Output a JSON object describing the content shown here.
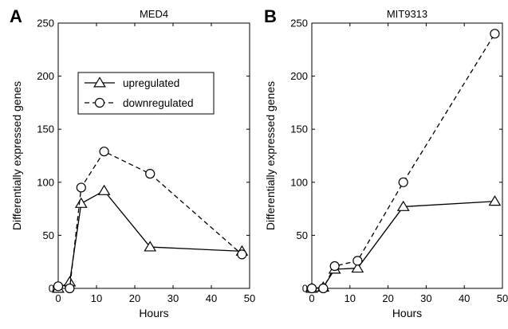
{
  "chart_data": [
    {
      "type": "line",
      "panel_label": "A",
      "title": "MED4",
      "xlabel": "Hours",
      "ylabel": "Differentially expressed genes",
      "xlim": [
        0,
        50
      ],
      "ylim": [
        0,
        250
      ],
      "xticks": [
        0,
        10,
        20,
        30,
        40,
        50
      ],
      "yticks": [
        0,
        50,
        100,
        150,
        200,
        250
      ],
      "grid": false,
      "legend": "upper-center",
      "series": [
        {
          "name": "upregulated",
          "marker": "triangle",
          "linestyle": "solid",
          "color": "#000000",
          "x": [
            0,
            3,
            6,
            12,
            24,
            48
          ],
          "y": [
            0,
            6,
            80,
            92,
            39,
            35
          ]
        },
        {
          "name": "downregulated",
          "marker": "circle",
          "linestyle": "dashed",
          "color": "#000000",
          "x": [
            0,
            3,
            6,
            12,
            24,
            48
          ],
          "y": [
            2,
            0,
            95,
            129,
            108,
            32
          ]
        }
      ]
    },
    {
      "type": "line",
      "panel_label": "B",
      "title": "MIT9313",
      "xlabel": "Hours",
      "ylabel": "Differentially expressed genes",
      "xlim": [
        0,
        50
      ],
      "ylim": [
        0,
        250
      ],
      "xticks": [
        0,
        10,
        20,
        30,
        40,
        50
      ],
      "yticks": [
        0,
        50,
        100,
        150,
        200,
        250
      ],
      "grid": false,
      "legend": "none",
      "series": [
        {
          "name": "upregulated",
          "marker": "triangle",
          "linestyle": "solid",
          "color": "#000000",
          "x": [
            0,
            3,
            6,
            12,
            24,
            48
          ],
          "y": [
            0,
            1,
            18,
            19,
            77,
            82
          ]
        },
        {
          "name": "downregulated",
          "marker": "circle",
          "linestyle": "dashed",
          "color": "#000000",
          "x": [
            0,
            3,
            6,
            12,
            24,
            48
          ],
          "y": [
            0,
            0,
            21,
            26,
            100,
            240
          ]
        }
      ]
    }
  ]
}
